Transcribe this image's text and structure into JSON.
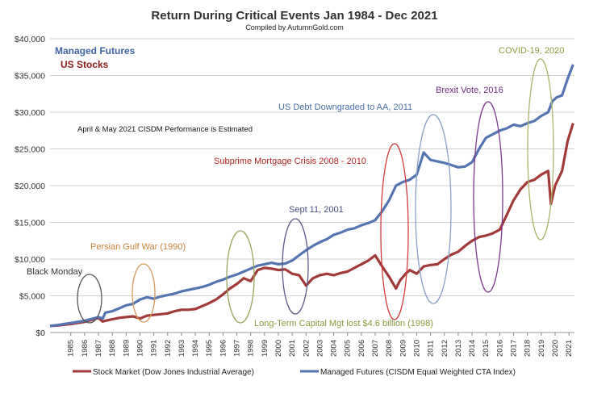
{
  "chart_data": {
    "type": "line",
    "title": "Return During Critical Events Jan 1984 - Dec 2021",
    "subtitle": "Compiled by AutumnGold.com",
    "ylim": [
      0,
      40000
    ],
    "y_ticks": [
      "$0",
      "$5,000",
      "$10,000",
      "$15,000",
      "$20,000",
      "$25,000",
      "$30,000",
      "$35,000",
      "$40,000"
    ],
    "y_tick_values": [
      0,
      5000,
      10000,
      15000,
      20000,
      25000,
      30000,
      35000,
      40000
    ],
    "x_ticks": [
      "1985",
      "1986",
      "1987",
      "1988",
      "1989",
      "1990",
      "1991",
      "1992",
      "1993",
      "1994",
      "1995",
      "1996",
      "1997",
      "1998",
      "1999",
      "2000",
      "2001",
      "2002",
      "2003",
      "2004",
      "2005",
      "2006",
      "2007",
      "2008",
      "2009",
      "2010",
      "2011",
      "2012",
      "2013",
      "2014",
      "2015",
      "2016",
      "2017",
      "2018",
      "2019",
      "2020",
      "2021"
    ],
    "xlim": [
      1984.0,
      2021.9
    ],
    "grid": "horizontal",
    "inline_labels": [
      {
        "text": "Managed Futures",
        "color": "#3f63a3"
      },
      {
        "text": "US Stocks",
        "color": "#8b1a1a"
      }
    ],
    "note": "April & May 2021 CISDM Performance is Estimated",
    "series": [
      {
        "name": "Managed Futures (CISDM Equal Weighted CTA Index)",
        "color": "#5475b2",
        "x": [
          1984.0,
          1984.5,
          1985.0,
          1985.5,
          1986.0,
          1986.5,
          1987.0,
          1987.5,
          1987.8,
          1988.0,
          1988.5,
          1989.0,
          1989.5,
          1990.0,
          1990.5,
          1991.0,
          1991.5,
          1992.0,
          1992.5,
          1993.0,
          1993.5,
          1994.0,
          1994.5,
          1995.0,
          1995.5,
          1996.0,
          1996.5,
          1997.0,
          1997.5,
          1998.0,
          1998.5,
          1999.0,
          1999.5,
          2000.0,
          2000.5,
          2001.0,
          2001.5,
          2002.0,
          2002.5,
          2003.0,
          2003.5,
          2004.0,
          2004.5,
          2005.0,
          2005.5,
          2006.0,
          2006.5,
          2007.0,
          2007.5,
          2008.0,
          2008.5,
          2009.0,
          2009.5,
          2010.0,
          2010.5,
          2011.0,
          2011.5,
          2012.0,
          2012.5,
          2013.0,
          2013.5,
          2014.0,
          2014.5,
          2015.0,
          2015.5,
          2016.0,
          2016.5,
          2017.0,
          2017.5,
          2018.0,
          2018.5,
          2019.0,
          2019.5,
          2020.0,
          2020.3,
          2020.6,
          2021.0,
          2021.4,
          2021.8
        ],
        "values": [
          900,
          1000,
          1150,
          1300,
          1450,
          1600,
          1850,
          2100,
          1900,
          2700,
          2900,
          3300,
          3700,
          3900,
          4500,
          4800,
          4600,
          4900,
          5100,
          5300,
          5600,
          5800,
          6000,
          6200,
          6500,
          6900,
          7200,
          7600,
          7900,
          8300,
          8700,
          9100,
          9300,
          9500,
          9300,
          9400,
          9800,
          10500,
          11200,
          11800,
          12300,
          12700,
          13300,
          13600,
          14000,
          14200,
          14600,
          14900,
          15300,
          16500,
          18000,
          20000,
          20500,
          20800,
          21500,
          24500,
          23500,
          23300,
          23100,
          22800,
          22500,
          22600,
          23200,
          25000,
          26500,
          27000,
          27500,
          27800,
          28300,
          28100,
          28500,
          28800,
          29500,
          30000,
          31500,
          32000,
          32300,
          34500,
          36500
        ]
      },
      {
        "name": "Stock Market (Dow Jones Industrial Average)",
        "color": "#a33a3a",
        "x": [
          1984.0,
          1984.5,
          1985.0,
          1985.5,
          1986.0,
          1986.5,
          1987.0,
          1987.5,
          1987.8,
          1988.0,
          1988.5,
          1989.0,
          1989.5,
          1990.0,
          1990.5,
          1991.0,
          1991.5,
          1992.0,
          1992.5,
          1993.0,
          1993.5,
          1994.0,
          1994.5,
          1995.0,
          1995.5,
          1996.0,
          1996.5,
          1997.0,
          1997.5,
          1998.0,
          1998.5,
          1999.0,
          1999.5,
          2000.0,
          2000.5,
          2001.0,
          2001.5,
          2002.0,
          2002.5,
          2003.0,
          2003.5,
          2004.0,
          2004.5,
          2005.0,
          2005.5,
          2006.0,
          2006.5,
          2007.0,
          2007.5,
          2008.0,
          2008.5,
          2009.0,
          2009.3,
          2009.7,
          2010.0,
          2010.5,
          2011.0,
          2011.5,
          2012.0,
          2012.5,
          2013.0,
          2013.5,
          2014.0,
          2014.5,
          2015.0,
          2015.5,
          2016.0,
          2016.5,
          2017.0,
          2017.5,
          2018.0,
          2018.5,
          2019.0,
          2019.5,
          2020.0,
          2020.2,
          2020.5,
          2021.0,
          2021.4,
          2021.8
        ],
        "values": [
          900,
          950,
          1050,
          1150,
          1300,
          1450,
          1700,
          2000,
          1500,
          1600,
          1800,
          2000,
          2100,
          2200,
          1900,
          2300,
          2400,
          2500,
          2600,
          2900,
          3100,
          3100,
          3200,
          3600,
          4000,
          4500,
          5200,
          6000,
          6600,
          7400,
          7000,
          8500,
          8800,
          8700,
          8500,
          8600,
          8000,
          7800,
          6400,
          7400,
          7800,
          8000,
          7800,
          8100,
          8300,
          8800,
          9300,
          9800,
          10500,
          9000,
          7600,
          6000,
          7100,
          8000,
          8500,
          8000,
          9000,
          9200,
          9300,
          10000,
          10600,
          11000,
          11800,
          12500,
          13000,
          13200,
          13500,
          14000,
          16000,
          18000,
          19500,
          20500,
          20800,
          21500,
          22000,
          17500,
          20000,
          22000,
          26000,
          28500
        ]
      }
    ],
    "annotations": [
      {
        "text": "Black Monday",
        "color": "#333333",
        "ellipse_color": "#555555"
      },
      {
        "text": "Persian Gulf War (1990)",
        "color": "#c8833a",
        "ellipse_color": "#d39a5c"
      },
      {
        "text": "Long-Term Capital Mgt lost $4.6 billion (1998)",
        "color": "#8c9a3c",
        "ellipse_color": "#9aa35e"
      },
      {
        "text": "Sept 11, 2001",
        "color": "#4a4a8a",
        "ellipse_color": "#5a5a8a"
      },
      {
        "text": "Subprime Mortgage Crisis 2008 - 2010",
        "color": "#b52525",
        "ellipse_color": "#d23b3b"
      },
      {
        "text": "US Debt Downgraded to AA, 2011",
        "color": "#4a6fa5",
        "ellipse_color": "#8aa0c4"
      },
      {
        "text": "Brexit Vote, 2016",
        "color": "#6b2d7b",
        "ellipse_color": "#7a3a8a"
      },
      {
        "text": "COVID-19, 2020",
        "color": "#8c9a3c",
        "ellipse_color": "#a9b56e"
      }
    ]
  }
}
